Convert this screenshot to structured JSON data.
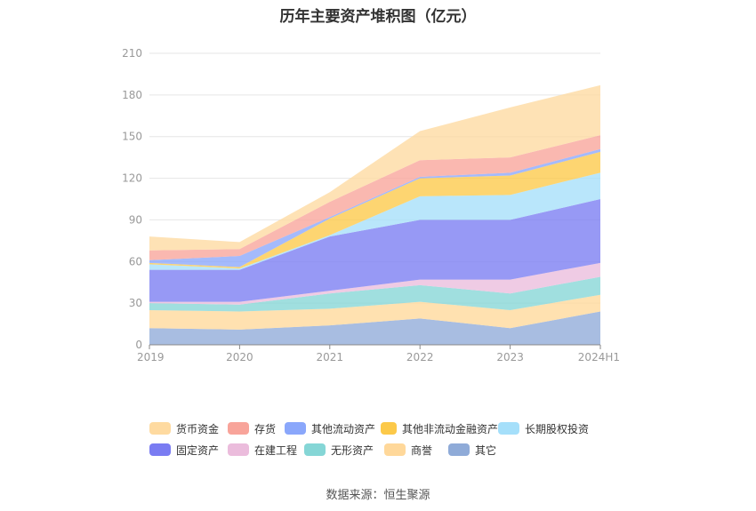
{
  "chart_data": {
    "type": "area",
    "stacked": true,
    "title": "历年主要资产堆积图（亿元）",
    "categories": [
      "2019",
      "2020",
      "2021",
      "2022",
      "2023",
      "2024H1"
    ],
    "ylim": [
      0,
      210
    ],
    "yticks": [
      0,
      30,
      60,
      90,
      120,
      150,
      180,
      210
    ],
    "grid": true,
    "legend_position": "bottom",
    "series": [
      {
        "name": "其它",
        "color": "#8fabd8",
        "values": [
          12,
          11,
          14,
          19,
          12,
          24
        ]
      },
      {
        "name": "商誉",
        "color": "#ffd89a",
        "values": [
          13,
          13,
          12,
          12,
          13,
          12
        ]
      },
      {
        "name": "无形资产",
        "color": "#85d6d6",
        "values": [
          5,
          5,
          11,
          12,
          12,
          13
        ]
      },
      {
        "name": "在建工程",
        "color": "#ebbcdc",
        "values": [
          1,
          2,
          2,
          4,
          10,
          10
        ]
      },
      {
        "name": "固定资产",
        "color": "#7a7cf2",
        "values": [
          23,
          23,
          39,
          43,
          43,
          46
        ]
      },
      {
        "name": "长期股权投资",
        "color": "#a5dffa",
        "values": [
          4,
          1,
          1,
          17,
          18,
          19
        ]
      },
      {
        "name": "其他非流动金融资产",
        "color": "#fcc949",
        "values": [
          1,
          1,
          12,
          13,
          14,
          15
        ]
      },
      {
        "name": "其他流动资产",
        "color": "#8aa7fb",
        "values": [
          2,
          8,
          1,
          1,
          2,
          2
        ]
      },
      {
        "name": "存货",
        "color": "#f8a49a",
        "values": [
          7,
          5,
          11,
          12,
          11,
          10
        ]
      },
      {
        "name": "货币资金",
        "color": "#fedaa0",
        "values": [
          10,
          5,
          7,
          21,
          36,
          36
        ]
      }
    ]
  },
  "legend_rows": [
    [
      {
        "label": "货币资金",
        "color": "#fedaa0"
      },
      {
        "label": "存货",
        "color": "#f8a49a"
      },
      {
        "label": "其他流动资产",
        "color": "#8aa7fb"
      },
      {
        "label": "其他非流动金融资产",
        "color": "#fcc949"
      },
      {
        "label": "长期股权投资",
        "color": "#a5dffa"
      }
    ],
    [
      {
        "label": "固定资产",
        "color": "#7a7cf2"
      },
      {
        "label": "在建工程",
        "color": "#ebbcdc"
      },
      {
        "label": "无形资产",
        "color": "#85d6d6"
      },
      {
        "label": "商誉",
        "color": "#ffd89a"
      },
      {
        "label": "其它",
        "color": "#8fabd8"
      }
    ]
  ],
  "source": "数据来源：恒生聚源"
}
